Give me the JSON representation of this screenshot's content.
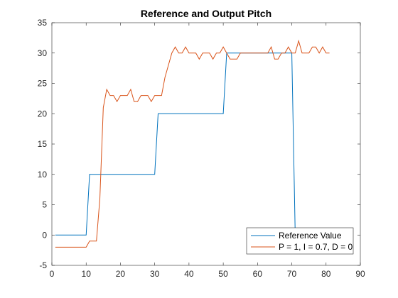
{
  "chart_data": {
    "type": "line",
    "title": "Reference and Output Pitch",
    "xlabel": "",
    "ylabel": "",
    "xlim": [
      0,
      90
    ],
    "ylim": [
      -5,
      35
    ],
    "xticks": [
      0,
      10,
      20,
      30,
      40,
      50,
      60,
      70,
      80,
      90
    ],
    "yticks": [
      -5,
      0,
      5,
      10,
      15,
      20,
      25,
      30,
      35
    ],
    "grid": false,
    "legend_position": "bottom-right",
    "series": [
      {
        "name": "Reference Value",
        "color": "#0072BD",
        "x": [
          1,
          10,
          11,
          30,
          31,
          50,
          51,
          70,
          71
        ],
        "y": [
          0,
          0,
          10,
          10,
          20,
          20,
          30,
          30,
          0
        ]
      },
      {
        "name": "P = 1, I = 0.7, D = 0",
        "color": "#D95319",
        "x": [
          1,
          2,
          3,
          4,
          5,
          6,
          7,
          8,
          9,
          10,
          11,
          12,
          13,
          14,
          15,
          16,
          17,
          18,
          19,
          20,
          21,
          22,
          23,
          24,
          25,
          26,
          27,
          28,
          29,
          30,
          31,
          32,
          33,
          34,
          35,
          36,
          37,
          38,
          39,
          40,
          41,
          42,
          43,
          44,
          45,
          46,
          47,
          48,
          49,
          50,
          51,
          52,
          53,
          54,
          55,
          56,
          57,
          58,
          59,
          60,
          61,
          62,
          63,
          64,
          65,
          66,
          67,
          68,
          69,
          70,
          71,
          72,
          73,
          74,
          75,
          76,
          77,
          78,
          79,
          80,
          81
        ],
        "y": [
          -2,
          -2,
          -2,
          -2,
          -2,
          -2,
          -2,
          -2,
          -2,
          -2,
          -1,
          -1,
          -1,
          6,
          21,
          24,
          23,
          23,
          22,
          23,
          23,
          23,
          24,
          22,
          22,
          23,
          23,
          23,
          22,
          23,
          23,
          23,
          26,
          28,
          30,
          31,
          30,
          30,
          31,
          30,
          30,
          30,
          29,
          30,
          30,
          30,
          29,
          30,
          30,
          31,
          30,
          29,
          29,
          29,
          30,
          30,
          30,
          30,
          30,
          30,
          30,
          30,
          30,
          31,
          29,
          29,
          30,
          30,
          31,
          30,
          30,
          32,
          30,
          30,
          30,
          31,
          31,
          30,
          31,
          30,
          30
        ]
      }
    ]
  }
}
